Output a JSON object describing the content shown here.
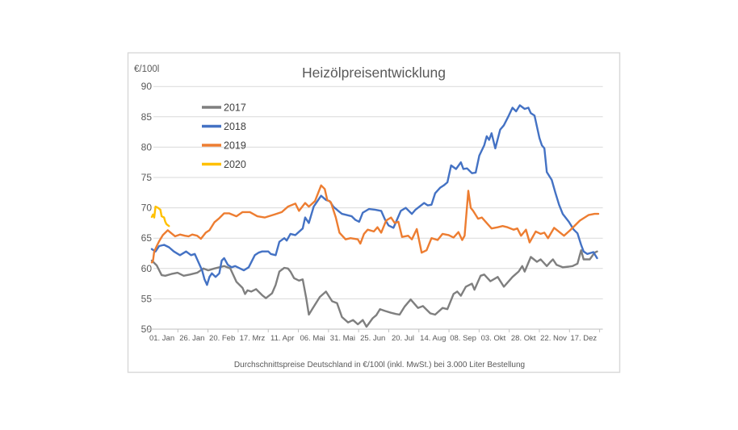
{
  "chart_data": {
    "type": "line",
    "title": "Heizölpreisentwicklung",
    "ylabel": "€/100l",
    "xlabel": "",
    "footnote": "Durchschnittspreise Deutschland in €/100l (inkl. MwSt.) bei 3.000 Liter Bestellung",
    "ylim": [
      50,
      90
    ],
    "ytick_step": 5,
    "y_tick_labels": [
      "90",
      "85",
      "80",
      "75",
      "70",
      "65",
      "60",
      "55",
      "50"
    ],
    "x_tick_labels": [
      "01. Jan",
      "26. Jan",
      "20. Feb",
      "17. Mrz",
      "11. Apr",
      "06. Mai",
      "31. Mai",
      "25. Jun",
      "20. Jul",
      "14. Aug",
      "08. Sep",
      "03. Okt",
      "28. Okt",
      "22. Nov",
      "17. Dez"
    ],
    "x_unit": "day_of_year",
    "x_range": [
      1,
      365
    ],
    "grid": true,
    "legend_position": "top-left-inside",
    "colors": {
      "grid": "#d9d9d9",
      "frame_border": "#d9d9d9",
      "axis_line": "#bfbfbf",
      "tick": "#bfbfbf",
      "axis_text": "#595959",
      "title_text": "#595959",
      "legend_text": "#404040",
      "background": "#ffffff"
    },
    "series": [
      {
        "name": "2017",
        "color": "#7f7f7f",
        "points": [
          [
            1,
            61.3
          ],
          [
            5,
            60.5
          ],
          [
            9,
            58.9
          ],
          [
            12,
            58.8
          ],
          [
            17,
            59.1
          ],
          [
            22,
            59.3
          ],
          [
            27,
            58.8
          ],
          [
            32,
            59.0
          ],
          [
            38,
            59.3
          ],
          [
            43,
            60.0
          ],
          [
            47,
            59.7
          ],
          [
            52,
            60.0
          ],
          [
            56,
            60.2
          ],
          [
            60,
            60.4
          ],
          [
            65,
            60.0
          ],
          [
            70,
            57.8
          ],
          [
            75,
            56.8
          ],
          [
            77,
            55.8
          ],
          [
            79,
            56.4
          ],
          [
            82,
            56.2
          ],
          [
            86,
            56.6
          ],
          [
            91,
            55.6
          ],
          [
            94,
            55.1
          ],
          [
            99,
            55.9
          ],
          [
            102,
            57.3
          ],
          [
            105,
            59.5
          ],
          [
            109,
            60.1
          ],
          [
            112,
            60.0
          ],
          [
            114,
            59.5
          ],
          [
            117,
            58.4
          ],
          [
            121,
            58.0
          ],
          [
            124,
            58.2
          ],
          [
            127,
            55.0
          ],
          [
            129,
            52.4
          ],
          [
            133,
            53.7
          ],
          [
            138,
            55.3
          ],
          [
            143,
            56.2
          ],
          [
            148,
            54.6
          ],
          [
            152,
            54.3
          ],
          [
            156,
            52.0
          ],
          [
            161,
            51.1
          ],
          [
            165,
            51.5
          ],
          [
            169,
            50.8
          ],
          [
            173,
            51.5
          ],
          [
            176,
            50.4
          ],
          [
            181,
            51.8
          ],
          [
            184,
            52.3
          ],
          [
            187,
            53.3
          ],
          [
            191,
            53.0
          ],
          [
            196,
            52.7
          ],
          [
            200,
            52.5
          ],
          [
            203,
            52.4
          ],
          [
            207,
            53.7
          ],
          [
            212,
            54.9
          ],
          [
            218,
            53.5
          ],
          [
            222,
            53.8
          ],
          [
            228,
            52.6
          ],
          [
            232,
            52.4
          ],
          [
            238,
            53.5
          ],
          [
            242,
            53.3
          ],
          [
            247,
            55.8
          ],
          [
            250,
            56.2
          ],
          [
            253,
            55.5
          ],
          [
            257,
            57.0
          ],
          [
            262,
            57.5
          ],
          [
            264,
            56.5
          ],
          [
            269,
            58.8
          ],
          [
            272,
            59.0
          ],
          [
            277,
            57.9
          ],
          [
            283,
            58.6
          ],
          [
            288,
            57.0
          ],
          [
            295,
            58.6
          ],
          [
            300,
            59.5
          ],
          [
            303,
            60.4
          ],
          [
            305,
            59.5
          ],
          [
            310,
            61.9
          ],
          [
            315,
            61.1
          ],
          [
            318,
            61.5
          ],
          [
            323,
            60.4
          ],
          [
            326,
            61.1
          ],
          [
            328,
            61.5
          ],
          [
            331,
            60.6
          ],
          [
            336,
            60.2
          ],
          [
            341,
            60.3
          ],
          [
            344,
            60.4
          ],
          [
            348,
            60.8
          ],
          [
            351,
            63.0
          ],
          [
            353,
            61.5
          ],
          [
            358,
            61.5
          ],
          [
            362,
            62.6
          ],
          [
            364,
            62.8
          ]
        ]
      },
      {
        "name": "2018",
        "color": "#4472c4",
        "points": [
          [
            1,
            63.2
          ],
          [
            4,
            62.8
          ],
          [
            7,
            63.7
          ],
          [
            11,
            63.9
          ],
          [
            15,
            63.5
          ],
          [
            19,
            62.8
          ],
          [
            24,
            62.2
          ],
          [
            29,
            62.8
          ],
          [
            33,
            62.2
          ],
          [
            36,
            62.4
          ],
          [
            38,
            61.5
          ],
          [
            42,
            59.7
          ],
          [
            44,
            58.2
          ],
          [
            46,
            57.3
          ],
          [
            48,
            58.6
          ],
          [
            50,
            59.2
          ],
          [
            53,
            58.6
          ],
          [
            56,
            59.2
          ],
          [
            58,
            61.3
          ],
          [
            60,
            61.7
          ],
          [
            63,
            60.6
          ],
          [
            66,
            60.2
          ],
          [
            69,
            60.4
          ],
          [
            73,
            60.0
          ],
          [
            76,
            59.7
          ],
          [
            80,
            60.2
          ],
          [
            85,
            62.2
          ],
          [
            88,
            62.6
          ],
          [
            91,
            62.8
          ],
          [
            96,
            62.8
          ],
          [
            98,
            62.4
          ],
          [
            102,
            62.2
          ],
          [
            105,
            64.4
          ],
          [
            109,
            65.0
          ],
          [
            111,
            64.6
          ],
          [
            114,
            65.7
          ],
          [
            118,
            65.5
          ],
          [
            124,
            66.6
          ],
          [
            126,
            68.4
          ],
          [
            129,
            67.5
          ],
          [
            133,
            70.2
          ],
          [
            136,
            71.1
          ],
          [
            139,
            72.0
          ],
          [
            143,
            71.3
          ],
          [
            146,
            71.1
          ],
          [
            149,
            70.2
          ],
          [
            153,
            69.5
          ],
          [
            156,
            69.0
          ],
          [
            160,
            68.8
          ],
          [
            164,
            68.6
          ],
          [
            167,
            68.0
          ],
          [
            170,
            67.7
          ],
          [
            173,
            69.2
          ],
          [
            178,
            69.8
          ],
          [
            183,
            69.7
          ],
          [
            188,
            69.5
          ],
          [
            191,
            68.1
          ],
          [
            194,
            67.1
          ],
          [
            198,
            66.7
          ],
          [
            204,
            69.5
          ],
          [
            208,
            70.0
          ],
          [
            213,
            69.0
          ],
          [
            216,
            69.7
          ],
          [
            223,
            70.8
          ],
          [
            226,
            70.4
          ],
          [
            229,
            70.5
          ],
          [
            232,
            72.4
          ],
          [
            236,
            73.3
          ],
          [
            239,
            73.7
          ],
          [
            242,
            74.2
          ],
          [
            245,
            77.0
          ],
          [
            249,
            76.4
          ],
          [
            253,
            77.5
          ],
          [
            255,
            76.4
          ],
          [
            258,
            76.5
          ],
          [
            262,
            75.7
          ],
          [
            265,
            75.8
          ],
          [
            268,
            78.6
          ],
          [
            272,
            80.3
          ],
          [
            274,
            81.8
          ],
          [
            276,
            81.2
          ],
          [
            278,
            82.3
          ],
          [
            281,
            79.8
          ],
          [
            285,
            82.9
          ],
          [
            288,
            83.6
          ],
          [
            292,
            85.2
          ],
          [
            295,
            86.5
          ],
          [
            298,
            85.9
          ],
          [
            301,
            86.9
          ],
          [
            305,
            86.3
          ],
          [
            308,
            86.5
          ],
          [
            310,
            85.6
          ],
          [
            313,
            85.2
          ],
          [
            317,
            81.5
          ],
          [
            319,
            80.3
          ],
          [
            321,
            79.8
          ],
          [
            323,
            75.9
          ],
          [
            327,
            74.6
          ],
          [
            330,
            72.5
          ],
          [
            333,
            70.5
          ],
          [
            336,
            69.0
          ],
          [
            341,
            67.7
          ],
          [
            345,
            66.4
          ],
          [
            348,
            65.8
          ],
          [
            351,
            63.9
          ],
          [
            353,
            62.8
          ],
          [
            356,
            62.4
          ],
          [
            361,
            62.7
          ],
          [
            364,
            61.7
          ]
        ]
      },
      {
        "name": "2019",
        "color": "#ed7d31",
        "points": [
          [
            1,
            61.0
          ],
          [
            2,
            61.3
          ],
          [
            3,
            62.8
          ],
          [
            5,
            63.7
          ],
          [
            7,
            64.5
          ],
          [
            10,
            65.5
          ],
          [
            14,
            66.3
          ],
          [
            17,
            65.8
          ],
          [
            20,
            65.3
          ],
          [
            24,
            65.6
          ],
          [
            28,
            65.4
          ],
          [
            31,
            65.3
          ],
          [
            34,
            65.6
          ],
          [
            38,
            65.4
          ],
          [
            41,
            64.9
          ],
          [
            45,
            65.9
          ],
          [
            48,
            66.3
          ],
          [
            52,
            67.6
          ],
          [
            56,
            68.3
          ],
          [
            60,
            69.1
          ],
          [
            64,
            69.1
          ],
          [
            70,
            68.6
          ],
          [
            75,
            69.3
          ],
          [
            81,
            69.3
          ],
          [
            87,
            68.6
          ],
          [
            93,
            68.4
          ],
          [
            101,
            68.9
          ],
          [
            107,
            69.3
          ],
          [
            112,
            70.2
          ],
          [
            118,
            70.7
          ],
          [
            121,
            69.5
          ],
          [
            126,
            70.8
          ],
          [
            129,
            70.2
          ],
          [
            134,
            71.1
          ],
          [
            139,
            73.7
          ],
          [
            142,
            73.1
          ],
          [
            144,
            71.3
          ],
          [
            147,
            70.9
          ],
          [
            151,
            68.4
          ],
          [
            154,
            65.9
          ],
          [
            159,
            64.8
          ],
          [
            163,
            65.0
          ],
          [
            169,
            64.8
          ],
          [
            171,
            64.1
          ],
          [
            174,
            65.7
          ],
          [
            177,
            66.4
          ],
          [
            182,
            66.1
          ],
          [
            185,
            66.8
          ],
          [
            188,
            65.9
          ],
          [
            192,
            67.9
          ],
          [
            196,
            68.4
          ],
          [
            199,
            67.5
          ],
          [
            202,
            67.7
          ],
          [
            205,
            65.2
          ],
          [
            210,
            65.4
          ],
          [
            213,
            64.8
          ],
          [
            217,
            66.5
          ],
          [
            221,
            62.6
          ],
          [
            225,
            63.0
          ],
          [
            229,
            65.0
          ],
          [
            234,
            64.7
          ],
          [
            238,
            65.7
          ],
          [
            243,
            65.5
          ],
          [
            247,
            65.1
          ],
          [
            251,
            66.0
          ],
          [
            254,
            64.7
          ],
          [
            256,
            65.4
          ],
          [
            259,
            72.8
          ],
          [
            261,
            70.0
          ],
          [
            263,
            69.5
          ],
          [
            267,
            68.2
          ],
          [
            270,
            68.4
          ],
          [
            274,
            67.5
          ],
          [
            278,
            66.6
          ],
          [
            283,
            66.8
          ],
          [
            287,
            67.0
          ],
          [
            291,
            66.8
          ],
          [
            296,
            66.4
          ],
          [
            299,
            66.6
          ],
          [
            302,
            65.4
          ],
          [
            306,
            66.4
          ],
          [
            309,
            64.3
          ],
          [
            314,
            66.1
          ],
          [
            318,
            65.7
          ],
          [
            321,
            65.9
          ],
          [
            324,
            65.0
          ],
          [
            329,
            66.7
          ],
          [
            337,
            65.4
          ],
          [
            342,
            66.3
          ],
          [
            350,
            67.9
          ],
          [
            357,
            68.8
          ],
          [
            362,
            69.0
          ],
          [
            365,
            69.0
          ]
        ]
      },
      {
        "name": "2020",
        "color": "#ffc000",
        "points": [
          [
            1,
            68.5
          ],
          [
            2,
            68.9
          ],
          [
            3,
            68.4
          ],
          [
            4,
            70.2
          ],
          [
            6,
            70.0
          ],
          [
            8,
            69.7
          ],
          [
            9,
            68.6
          ],
          [
            11,
            68.4
          ],
          [
            12,
            67.7
          ],
          [
            13,
            67.3
          ],
          [
            15,
            67.0
          ]
        ]
      }
    ]
  }
}
